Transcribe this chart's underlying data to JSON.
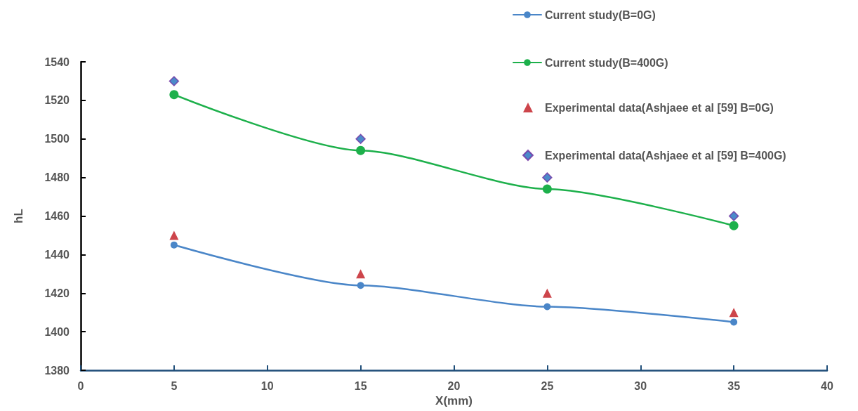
{
  "chart_data": {
    "type": "line",
    "xlabel": "X(mm)",
    "ylabel": "hL",
    "x": [
      5,
      15,
      25,
      35
    ],
    "series": [
      {
        "name": "Current study(B=0G)",
        "marker": "circle",
        "color": "#4a86c8",
        "values": [
          1445,
          1424,
          1413,
          1405
        ]
      },
      {
        "name": "Current study(B=400G)",
        "marker": "circle",
        "color": "#1db04b",
        "values": [
          1523,
          1494,
          1474,
          1455
        ]
      },
      {
        "name": "Experimental data(Ashjaee et al [59] B=0G)",
        "type": "scatter",
        "marker": "triangle",
        "color": "#c0161e",
        "values": [
          1450,
          1430,
          1420,
          1410
        ]
      },
      {
        "name": "Experimental data(Ashjaee et al [59] B=400G)",
        "type": "scatter",
        "marker": "diamond",
        "color": "#1f6dbd",
        "values": [
          1530,
          1500,
          1480,
          1460
        ]
      }
    ],
    "xlim": [
      0,
      40
    ],
    "xticks": [
      0,
      5,
      10,
      15,
      20,
      25,
      30,
      35,
      40
    ],
    "ylim": [
      1380,
      1540
    ],
    "yticks": [
      1380,
      1400,
      1420,
      1440,
      1460,
      1480,
      1500,
      1520,
      1540
    ],
    "grid": false,
    "legend": "top right",
    "line_style": "solid"
  }
}
